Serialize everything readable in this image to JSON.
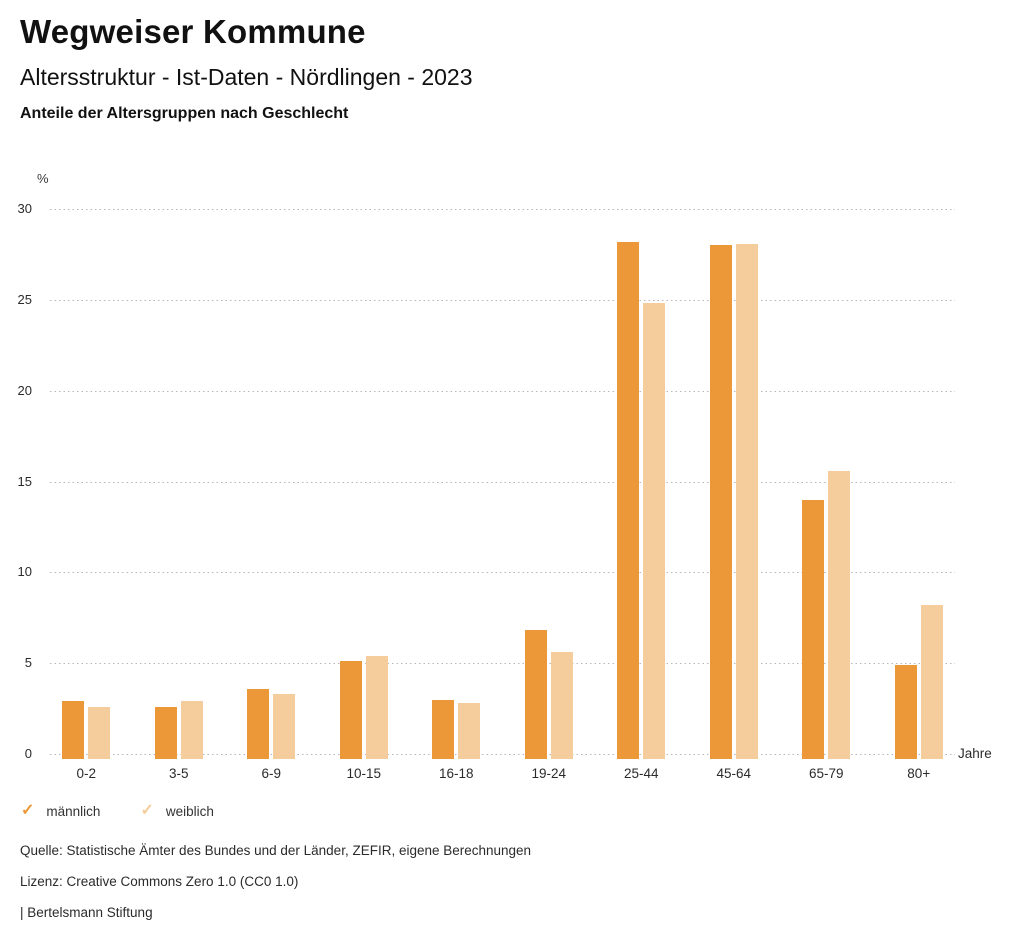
{
  "header": {
    "title": "Wegweiser Kommune",
    "subtitle": "Altersstruktur - Ist-Daten - Nördlingen - 2023",
    "description": "Anteile der Altersgruppen nach Geschlecht"
  },
  "chart_data": {
    "type": "bar",
    "title": "Anteile der Altersgruppen nach Geschlecht",
    "categories": [
      "0-2",
      "3-5",
      "6-9",
      "10-15",
      "16-18",
      "19-24",
      "25-44",
      "45-64",
      "65-79",
      "80+"
    ],
    "series": [
      {
        "name": "männlich",
        "color": "#EC9838",
        "values": [
          2.9,
          2.6,
          3.6,
          5.1,
          3.0,
          6.8,
          28.2,
          28.0,
          14.0,
          4.9
        ]
      },
      {
        "name": "weiblich",
        "color": "#F5CC9B",
        "values": [
          2.6,
          2.9,
          3.3,
          5.4,
          2.8,
          5.6,
          24.8,
          28.1,
          15.6,
          8.2
        ]
      }
    ],
    "y_unit": "%",
    "x_unit": "Jahre",
    "ylim": [
      0,
      30
    ],
    "yticks": [
      0,
      5,
      10,
      15,
      20,
      25,
      30
    ],
    "grid": "horizontal-dotted",
    "legend_position": "bottom-left"
  },
  "legend": {
    "items": [
      {
        "label": "männlich",
        "icon": "check-icon",
        "color": "#EC9838"
      },
      {
        "label": "weiblich",
        "icon": "check-icon",
        "color": "#F5CC9B"
      }
    ]
  },
  "footer": {
    "source": "Quelle: Statistische Ämter des Bundes und der Länder, ZEFIR, eigene Berechnungen",
    "license": "Lizenz: Creative Commons Zero 1.0 (CC0 1.0)",
    "attribution": "| Bertelsmann Stiftung"
  }
}
